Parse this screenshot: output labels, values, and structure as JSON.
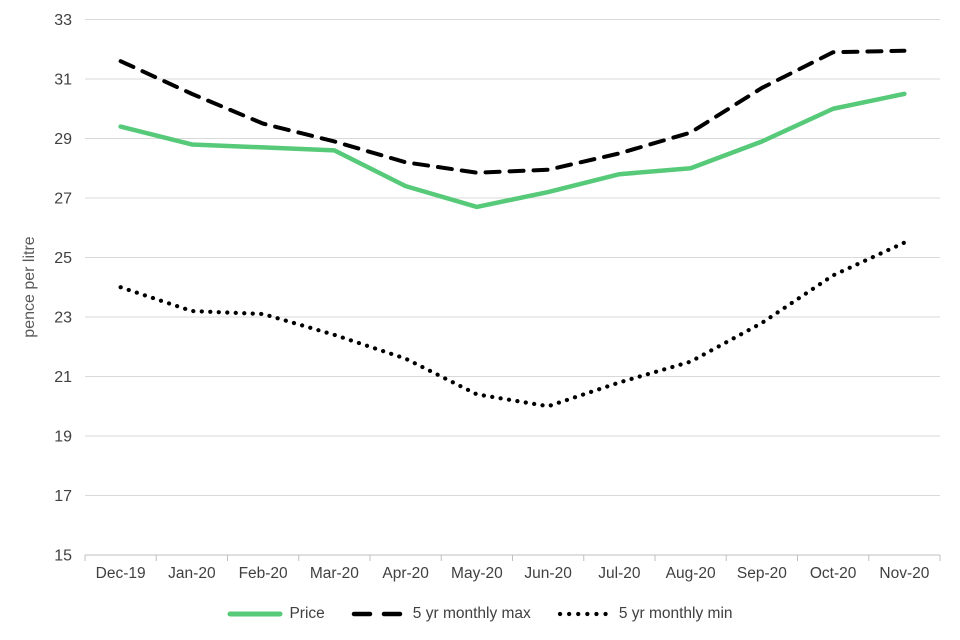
{
  "chart_data": {
    "type": "line",
    "title": "",
    "ylabel": "pence per litre",
    "xlabel": "",
    "ylim": [
      15,
      33
    ],
    "yticks": [
      15,
      17,
      19,
      21,
      23,
      25,
      27,
      29,
      31,
      33
    ],
    "grid": true,
    "legend_position": "bottom",
    "categories": [
      "Dec-19",
      "Jan-20",
      "Feb-20",
      "Mar-20",
      "Apr-20",
      "May-20",
      "Jun-20",
      "Jul-20",
      "Aug-20",
      "Sep-20",
      "Oct-20",
      "Nov-20"
    ],
    "series": [
      {
        "name": "Price",
        "line_style": "solid",
        "color": "#57CA7A",
        "values": [
          29.4,
          28.8,
          28.7,
          28.6,
          27.4,
          26.7,
          27.2,
          27.8,
          28.0,
          28.9,
          30.0,
          30.5
        ]
      },
      {
        "name": "5 yr monthly max",
        "line_style": "dashed",
        "color": "#000000",
        "values": [
          31.6,
          30.5,
          29.5,
          28.9,
          28.2,
          27.85,
          27.95,
          28.5,
          29.2,
          30.7,
          31.9,
          31.95
        ]
      },
      {
        "name": "5 yr monthly min",
        "line_style": "dotted",
        "color": "#000000",
        "values": [
          24.0,
          23.2,
          23.1,
          22.4,
          21.6,
          20.4,
          20.0,
          20.8,
          21.5,
          22.8,
          24.4,
          25.5
        ]
      }
    ],
    "colors": {
      "grid": "#D9D9D9",
      "axis": "#BFBFBF",
      "tick_text": "#404040",
      "axis_title_text": "#595959"
    }
  }
}
